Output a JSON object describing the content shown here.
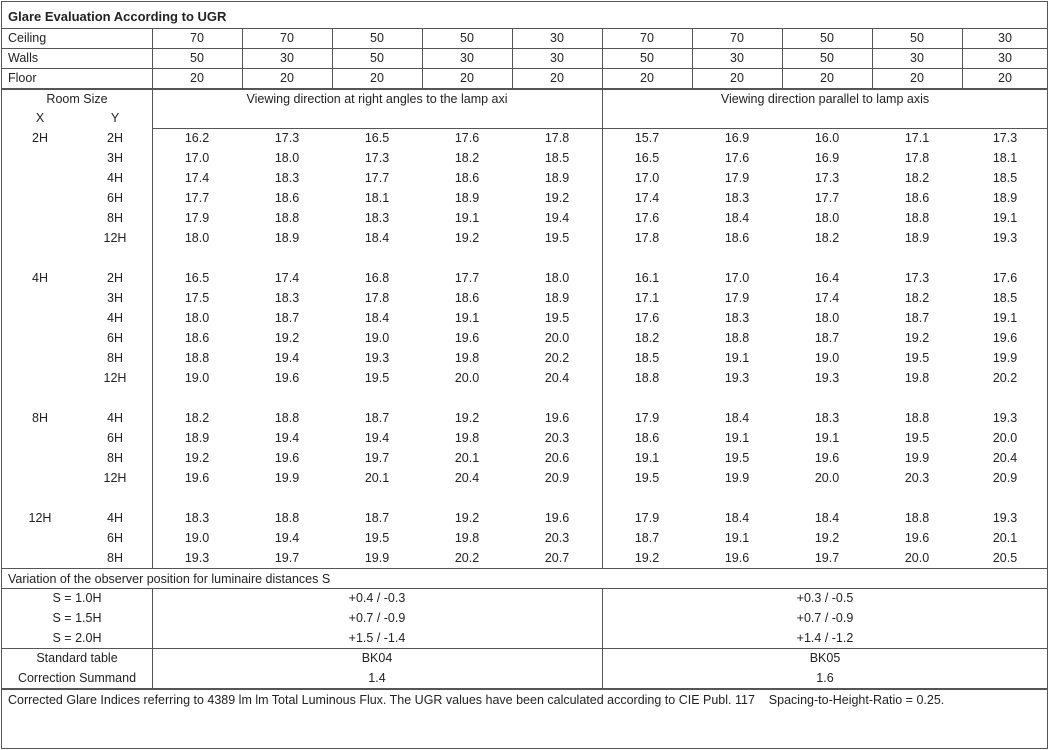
{
  "title": "Glare Evaluation According to UGR",
  "reflectances": [
    {
      "label": "Ceiling",
      "values": [
        "70",
        "70",
        "50",
        "50",
        "30",
        "70",
        "70",
        "50",
        "50",
        "30"
      ]
    },
    {
      "label": "Walls",
      "values": [
        "50",
        "30",
        "50",
        "30",
        "30",
        "50",
        "30",
        "50",
        "30",
        "30"
      ]
    },
    {
      "label": "Floor",
      "values": [
        "20",
        "20",
        "20",
        "20",
        "20",
        "20",
        "20",
        "20",
        "20",
        "20"
      ]
    }
  ],
  "room_size": {
    "label": "Room Size",
    "x": "X",
    "y": "Y"
  },
  "directions": [
    "Viewing direction at right angles to the lamp axi",
    "Viewing direction parallel to lamp axis"
  ],
  "groups": [
    {
      "x": "2H",
      "rows": [
        {
          "y": "2H",
          "values": [
            "16.2",
            "17.3",
            "16.5",
            "17.6",
            "17.8",
            "15.7",
            "16.9",
            "16.0",
            "17.1",
            "17.3"
          ]
        },
        {
          "y": "3H",
          "values": [
            "17.0",
            "18.0",
            "17.3",
            "18.2",
            "18.5",
            "16.5",
            "17.6",
            "16.9",
            "17.8",
            "18.1"
          ]
        },
        {
          "y": "4H",
          "values": [
            "17.4",
            "18.3",
            "17.7",
            "18.6",
            "18.9",
            "17.0",
            "17.9",
            "17.3",
            "18.2",
            "18.5"
          ]
        },
        {
          "y": "6H",
          "values": [
            "17.7",
            "18.6",
            "18.1",
            "18.9",
            "19.2",
            "17.4",
            "18.3",
            "17.7",
            "18.6",
            "18.9"
          ]
        },
        {
          "y": "8H",
          "values": [
            "17.9",
            "18.8",
            "18.3",
            "19.1",
            "19.4",
            "17.6",
            "18.4",
            "18.0",
            "18.8",
            "19.1"
          ]
        },
        {
          "y": "12H",
          "values": [
            "18.0",
            "18.9",
            "18.4",
            "19.2",
            "19.5",
            "17.8",
            "18.6",
            "18.2",
            "18.9",
            "19.3"
          ]
        }
      ]
    },
    {
      "x": "4H",
      "rows": [
        {
          "y": "2H",
          "values": [
            "16.5",
            "17.4",
            "16.8",
            "17.7",
            "18.0",
            "16.1",
            "17.0",
            "16.4",
            "17.3",
            "17.6"
          ]
        },
        {
          "y": "3H",
          "values": [
            "17.5",
            "18.3",
            "17.8",
            "18.6",
            "18.9",
            "17.1",
            "17.9",
            "17.4",
            "18.2",
            "18.5"
          ]
        },
        {
          "y": "4H",
          "values": [
            "18.0",
            "18.7",
            "18.4",
            "19.1",
            "19.5",
            "17.6",
            "18.3",
            "18.0",
            "18.7",
            "19.1"
          ]
        },
        {
          "y": "6H",
          "values": [
            "18.6",
            "19.2",
            "19.0",
            "19.6",
            "20.0",
            "18.2",
            "18.8",
            "18.7",
            "19.2",
            "19.6"
          ]
        },
        {
          "y": "8H",
          "values": [
            "18.8",
            "19.4",
            "19.3",
            "19.8",
            "20.2",
            "18.5",
            "19.1",
            "19.0",
            "19.5",
            "19.9"
          ]
        },
        {
          "y": "12H",
          "values": [
            "19.0",
            "19.6",
            "19.5",
            "20.0",
            "20.4",
            "18.8",
            "19.3",
            "19.3",
            "19.8",
            "20.2"
          ]
        }
      ]
    },
    {
      "x": "8H",
      "rows": [
        {
          "y": "4H",
          "values": [
            "18.2",
            "18.8",
            "18.7",
            "19.2",
            "19.6",
            "17.9",
            "18.4",
            "18.3",
            "18.8",
            "19.3"
          ]
        },
        {
          "y": "6H",
          "values": [
            "18.9",
            "19.4",
            "19.4",
            "19.8",
            "20.3",
            "18.6",
            "19.1",
            "19.1",
            "19.5",
            "20.0"
          ]
        },
        {
          "y": "8H",
          "values": [
            "19.2",
            "19.6",
            "19.7",
            "20.1",
            "20.6",
            "19.1",
            "19.5",
            "19.6",
            "19.9",
            "20.4"
          ]
        },
        {
          "y": "12H",
          "values": [
            "19.6",
            "19.9",
            "20.1",
            "20.4",
            "20.9",
            "19.5",
            "19.9",
            "20.0",
            "20.3",
            "20.9"
          ]
        }
      ]
    },
    {
      "x": "12H",
      "rows": [
        {
          "y": "4H",
          "values": [
            "18.3",
            "18.8",
            "18.7",
            "19.2",
            "19.6",
            "17.9",
            "18.4",
            "18.4",
            "18.8",
            "19.3"
          ]
        },
        {
          "y": "6H",
          "values": [
            "19.0",
            "19.4",
            "19.5",
            "19.8",
            "20.3",
            "18.7",
            "19.1",
            "19.2",
            "19.6",
            "20.1"
          ]
        },
        {
          "y": "8H",
          "values": [
            "19.3",
            "19.7",
            "19.9",
            "20.2",
            "20.7",
            "19.2",
            "19.6",
            "19.7",
            "20.0",
            "20.5"
          ]
        }
      ]
    }
  ],
  "variation": {
    "title": "Variation of the observer position for luminaire distances S",
    "rows": [
      {
        "label": "S = 1.0H",
        "values": [
          "+0.4 / -0.3",
          "+0.3 / -0.5"
        ]
      },
      {
        "label": "S = 1.5H",
        "values": [
          "+0.7 / -0.9",
          "+0.7 / -0.9"
        ]
      },
      {
        "label": "S = 2.0H",
        "values": [
          "+1.5 / -1.4",
          "+1.4 / -1.2"
        ]
      }
    ]
  },
  "standard_table": {
    "label": "Standard table",
    "values": [
      "BK04",
      "BK05"
    ]
  },
  "correction_summand": {
    "label": "Correction Summand",
    "values": [
      "1.4",
      "1.6"
    ]
  },
  "footer": "Corrected Glare Indices referring to 4389 lm lm Total Luminous Flux. The UGR values have been calculated according to CIE Publ. 117    Spacing-to-Height-Ratio = 0.25."
}
